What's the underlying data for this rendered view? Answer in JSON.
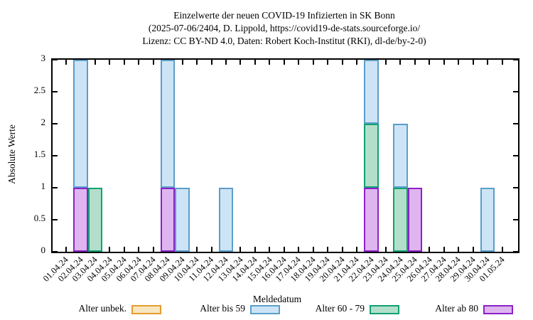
{
  "title": {
    "line1": "Einzelwerte der neuen COVID-19 Infizierten in SK Bonn",
    "line2": "(2025-07-06/2404, D. Lippold, https://covid19-de-stats.sourceforge.io/",
    "line3": "Lizenz: CC BY-ND 4.0, Daten: Robert Koch-Institut (RKI), dl-de/by-2-0)"
  },
  "axes": {
    "ylabel": "Absolute Werte",
    "xlabel": "Meldedatum",
    "yticks": [
      "0",
      "0.5",
      "1",
      "1.5",
      "2",
      "2.5",
      "3"
    ]
  },
  "legend": [
    {
      "label": "Alter unbek.",
      "fill": "#f8e6c0",
      "border": "#e49c2d"
    },
    {
      "label": "Alter bis 59",
      "fill": "#cde4f6",
      "border": "#5b9ec9"
    },
    {
      "label": "Alter 60 - 79",
      "fill": "#b3dfca",
      "border": "#10a173"
    },
    {
      "label": "Alter ab 80",
      "fill": "#dfb5f0",
      "border": "#8b22c8"
    }
  ],
  "chart_data": {
    "type": "bar",
    "stacked": true,
    "stack_order": "bottom-to-top",
    "title": "Einzelwerte der neuen COVID-19 Infizierten in SK Bonn",
    "xlabel": "Meldedatum",
    "ylabel": "Absolute Werte",
    "ylim": [
      0,
      3
    ],
    "ytick_step": 0.5,
    "grid": false,
    "legend_position": "below",
    "categories": [
      "01.04.24",
      "02.04.24",
      "03.04.24",
      "04.04.24",
      "05.04.24",
      "06.04.24",
      "07.04.24",
      "08.04.24",
      "09.04.24",
      "10.04.24",
      "11.04.24",
      "12.04.24",
      "13.04.24",
      "14.04.24",
      "15.04.24",
      "16.04.24",
      "17.04.24",
      "18.04.24",
      "19.04.24",
      "20.04.24",
      "21.04.24",
      "22.04.24",
      "23.04.24",
      "24.04.24",
      "25.04.24",
      "26.04.24",
      "27.04.24",
      "28.04.24",
      "29.04.24",
      "30.04.24",
      "01.05.24"
    ],
    "series": [
      {
        "name": "Alter ab 80",
        "values": [
          0,
          1,
          0,
          0,
          0,
          0,
          0,
          1,
          0,
          0,
          0,
          0,
          0,
          0,
          0,
          0,
          0,
          0,
          0,
          0,
          0,
          1,
          0,
          0,
          1,
          0,
          0,
          0,
          0,
          0,
          0
        ]
      },
      {
        "name": "Alter 60 - 79",
        "values": [
          0,
          0,
          1,
          0,
          0,
          0,
          0,
          0,
          0,
          0,
          0,
          0,
          0,
          0,
          0,
          0,
          0,
          0,
          0,
          0,
          0,
          1,
          0,
          1,
          0,
          0,
          0,
          0,
          0,
          0,
          0
        ]
      },
      {
        "name": "Alter bis 59",
        "values": [
          0,
          2,
          0,
          0,
          0,
          0,
          0,
          2,
          1,
          0,
          0,
          1,
          0,
          0,
          0,
          0,
          0,
          0,
          0,
          0,
          0,
          1,
          0,
          1,
          0,
          0,
          0,
          0,
          0,
          1,
          0
        ]
      },
      {
        "name": "Alter unbek.",
        "values": [
          0,
          0,
          0,
          0,
          0,
          0,
          0,
          0,
          0,
          0,
          0,
          0,
          0,
          0,
          0,
          0,
          0,
          0,
          0,
          0,
          0,
          0,
          0,
          0,
          0,
          0,
          0,
          0,
          0,
          0,
          0
        ]
      }
    ]
  }
}
